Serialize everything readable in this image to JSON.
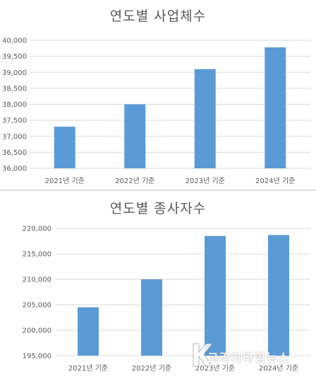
{
  "chart_data": [
    {
      "type": "bar",
      "title": "연도별 사업체수",
      "categories": [
        "2021년 기준",
        "2022년 기준",
        "2023년 기준",
        "2024년 기준"
      ],
      "values": [
        37300,
        38000,
        39100,
        39780
      ],
      "ylim": [
        36000,
        40000
      ],
      "yticks": [
        36000,
        36500,
        37000,
        37500,
        38000,
        38500,
        39000,
        39500,
        40000
      ],
      "ytick_labels": [
        "36,000",
        "36,500",
        "37,000",
        "37,500",
        "38,000",
        "38,500",
        "39,000",
        "39,500",
        "40,000"
      ],
      "grid": true,
      "bar_color": "#5b9bd5"
    },
    {
      "type": "bar",
      "title": "연도별 종사자수",
      "categories": [
        "2021년 기준",
        "2022년 기준",
        "2023년 기준",
        "2024년 기준"
      ],
      "values": [
        204500,
        210000,
        218500,
        218700
      ],
      "ylim": [
        195000,
        220000
      ],
      "yticks": [
        195000,
        200000,
        205000,
        210000,
        215000,
        220000
      ],
      "ytick_labels": [
        "195,000",
        "200,000",
        "205,000",
        "210,000",
        "215,000",
        "220,000"
      ],
      "grid": true,
      "bar_color": "#5b9bd5"
    }
  ],
  "watermark": {
    "text": "코리아타임뉴스",
    "icon": "k-logo-icon"
  }
}
